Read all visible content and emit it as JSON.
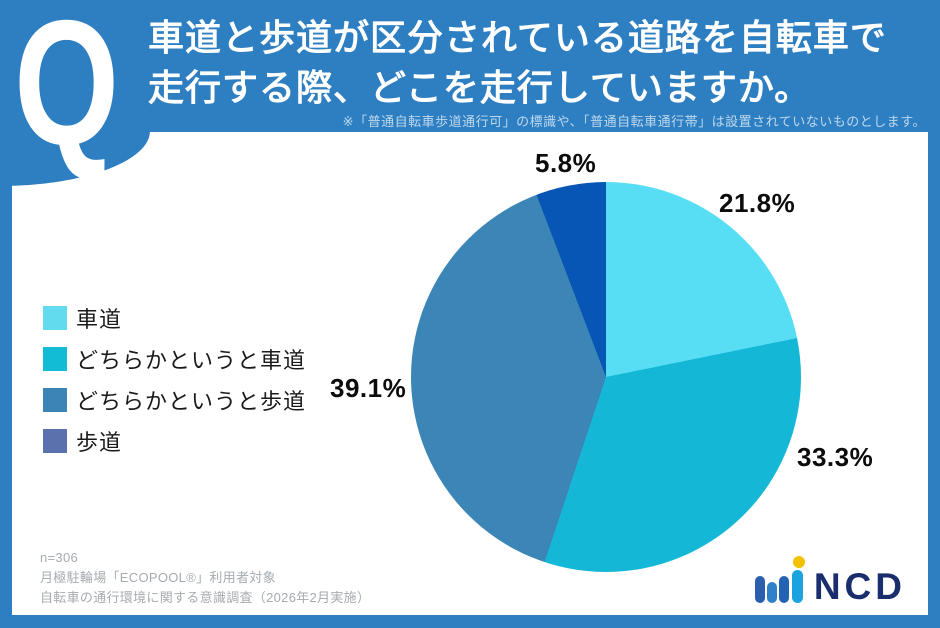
{
  "header": {
    "q_mark": "Q",
    "title_line1": "車道と歩道が区分されている道路を自転車で",
    "title_line2": "走行する際、どこを走行していますか。",
    "note": "※「普通自転車歩道通行可」の標識や、「普通自転車通行帯」は設置されていないものとします。"
  },
  "chart_data": {
    "type": "pie",
    "title": "車道と歩道が区分されている道路を自転車で走行する際、どこを走行していますか。",
    "categories": [
      "車道",
      "どちらかというと車道",
      "どちらかというと歩道",
      "歩道"
    ],
    "values": [
      21.8,
      33.3,
      39.1,
      5.8
    ],
    "unit": "%",
    "labels": [
      "21.8%",
      "33.3%",
      "39.1%",
      "5.8%"
    ],
    "colors": [
      "#58DEF4",
      "#14B8D6",
      "#3C86B7",
      "#0756B5"
    ],
    "legend_colors": [
      "#63DBEE",
      "#12BCD4",
      "#3D84B6",
      "#5A71AD"
    ],
    "legend_position": "left",
    "start_angle_deg": 0,
    "direction": "clockwise"
  },
  "footer": {
    "sample_size": "n=306",
    "audience": "月極駐輪場「ECOPOOL®」利用者対象",
    "survey": "自転車の通行環境に関する意識調査（2026年2月実施）",
    "logo_text": "NCD"
  },
  "colors": {
    "frame_blue": "#2E7FC2",
    "panel_white": "#FFFFFF",
    "note_text": "#BDD8EE",
    "footnote_gray": "#A6ABB0",
    "logo_navy": "#1A2E6E",
    "logo_yellow": "#F2C100",
    "label_black": "#0C0C0C"
  }
}
